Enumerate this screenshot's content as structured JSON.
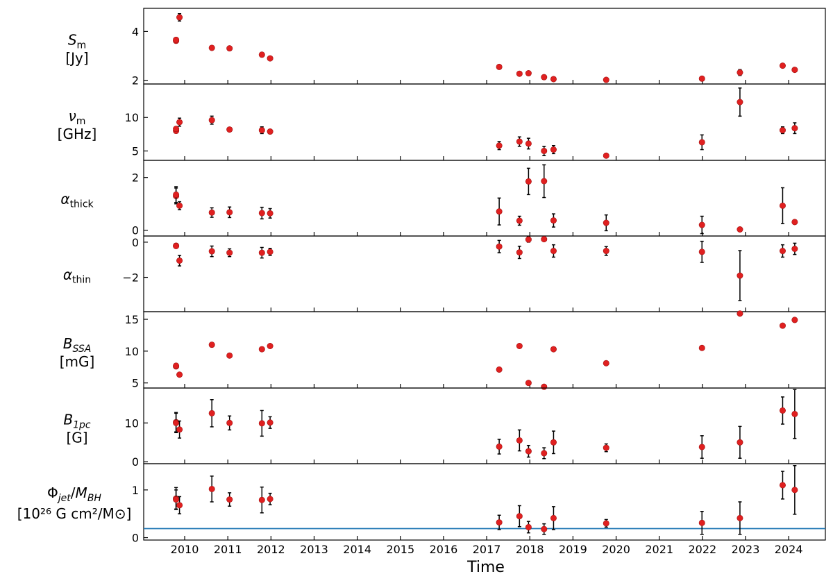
{
  "chart_data": {
    "type": "scatter",
    "xlabel": "Time",
    "x_range": [
      2009.05,
      2024.85
    ],
    "x_ticks": [
      2010,
      2011,
      2012,
      2013,
      2014,
      2015,
      2016,
      2017,
      2018,
      2019,
      2020,
      2021,
      2022,
      2023,
      2024
    ],
    "x_tick_labels": [
      "2010",
      "2011",
      "2012",
      "2013",
      "2014",
      "2015",
      "2016",
      "2017",
      "2018",
      "2019",
      "2020",
      "2021",
      "2022",
      "2023",
      "2024"
    ],
    "marker_color": "#e02020",
    "errorbar_color": "#000000",
    "panels": [
      {
        "ylabel_main": "S",
        "ylabel_sub": "m",
        "ylabel_unit": "[Jy]",
        "ylim": [
          1.85,
          4.95
        ],
        "yticks": [
          2,
          4
        ],
        "ytick_labels": [
          "2",
          "4"
        ],
        "points": [
          {
            "x": 2009.8,
            "y": 3.62,
            "err": 0.05
          },
          {
            "x": 2009.8,
            "y": 3.66,
            "err": 0.05
          },
          {
            "x": 2009.88,
            "y": 4.58,
            "err": 0.15
          },
          {
            "x": 2010.63,
            "y": 3.33,
            "err": 0.05
          },
          {
            "x": 2011.04,
            "y": 3.31,
            "err": 0.05
          },
          {
            "x": 2011.79,
            "y": 3.05,
            "err": 0.07
          },
          {
            "x": 2011.98,
            "y": 2.9,
            "err": 0.05
          },
          {
            "x": 2017.29,
            "y": 2.55,
            "err": 0.08
          },
          {
            "x": 2017.76,
            "y": 2.27,
            "err": 0.06
          },
          {
            "x": 2017.97,
            "y": 2.29,
            "err": 0.06
          },
          {
            "x": 2018.33,
            "y": 2.13,
            "err": 0.06
          },
          {
            "x": 2018.55,
            "y": 2.05,
            "err": 0.05
          },
          {
            "x": 2019.77,
            "y": 2.02,
            "err": 0.06
          },
          {
            "x": 2021.99,
            "y": 2.07,
            "err": 0.08
          },
          {
            "x": 2022.87,
            "y": 2.32,
            "err": 0.12
          },
          {
            "x": 2023.86,
            "y": 2.6,
            "err": 0.08
          },
          {
            "x": 2024.14,
            "y": 2.43,
            "err": 0.06
          }
        ]
      },
      {
        "ylabel_main": "ν",
        "ylabel_sub": "m",
        "ylabel_unit": "[GHz]",
        "ylim": [
          3.6,
          15.0
        ],
        "yticks": [
          5,
          10
        ],
        "ytick_labels": [
          "5",
          "10"
        ],
        "points": [
          {
            "x": 2009.8,
            "y": 8.0,
            "err": 0.3
          },
          {
            "x": 2009.8,
            "y": 8.3,
            "err": 0.3
          },
          {
            "x": 2009.88,
            "y": 9.3,
            "err": 0.6
          },
          {
            "x": 2010.63,
            "y": 9.6,
            "err": 0.6
          },
          {
            "x": 2011.04,
            "y": 8.2,
            "err": 0.3
          },
          {
            "x": 2011.79,
            "y": 8.1,
            "err": 0.5
          },
          {
            "x": 2011.98,
            "y": 7.9,
            "err": 0.3
          },
          {
            "x": 2017.29,
            "y": 5.8,
            "err": 0.6
          },
          {
            "x": 2017.76,
            "y": 6.4,
            "err": 0.7
          },
          {
            "x": 2017.97,
            "y": 6.1,
            "err": 0.8
          },
          {
            "x": 2018.33,
            "y": 5.0,
            "err": 0.7
          },
          {
            "x": 2018.55,
            "y": 5.2,
            "err": 0.6
          },
          {
            "x": 2019.77,
            "y": 4.3,
            "err": 0.3
          },
          {
            "x": 2021.99,
            "y": 6.3,
            "err": 1.1
          },
          {
            "x": 2022.87,
            "y": 12.3,
            "err": 2.1
          },
          {
            "x": 2023.86,
            "y": 8.1,
            "err": 0.5
          },
          {
            "x": 2024.14,
            "y": 8.4,
            "err": 0.8
          }
        ]
      },
      {
        "ylabel_main": "α",
        "ylabel_sub": "thick",
        "ylabel_unit": "",
        "ylim": [
          -0.22,
          2.65
        ],
        "yticks": [
          0,
          2
        ],
        "ytick_labels": [
          "0",
          "2"
        ],
        "points": [
          {
            "x": 2009.8,
            "y": 1.3,
            "err": 0.3
          },
          {
            "x": 2009.8,
            "y": 1.35,
            "err": 0.3
          },
          {
            "x": 2009.88,
            "y": 0.93,
            "err": 0.15
          },
          {
            "x": 2010.63,
            "y": 0.67,
            "err": 0.18
          },
          {
            "x": 2011.04,
            "y": 0.68,
            "err": 0.2
          },
          {
            "x": 2011.79,
            "y": 0.65,
            "err": 0.22
          },
          {
            "x": 2011.98,
            "y": 0.64,
            "err": 0.18
          },
          {
            "x": 2017.29,
            "y": 0.71,
            "err": 0.51
          },
          {
            "x": 2017.76,
            "y": 0.36,
            "err": 0.17
          },
          {
            "x": 2017.97,
            "y": 1.85,
            "err": 0.5
          },
          {
            "x": 2018.33,
            "y": 1.86,
            "err": 0.62
          },
          {
            "x": 2018.55,
            "y": 0.37,
            "err": 0.25
          },
          {
            "x": 2019.77,
            "y": 0.28,
            "err": 0.3
          },
          {
            "x": 2021.99,
            "y": 0.2,
            "err": 0.33
          },
          {
            "x": 2022.87,
            "y": 0.03,
            "err": 0.06
          },
          {
            "x": 2023.86,
            "y": 0.93,
            "err": 0.68
          },
          {
            "x": 2024.14,
            "y": 0.31,
            "err": 0.08
          }
        ]
      },
      {
        "ylabel_main": "α",
        "ylabel_sub": "thin",
        "ylabel_unit": "",
        "ylim": [
          -3.95,
          0.35
        ],
        "yticks": [
          -2,
          0
        ],
        "ytick_labels": [
          "−2",
          "0"
        ],
        "points": [
          {
            "x": 2009.8,
            "y": -0.2,
            "err": 0.08
          },
          {
            "x": 2009.8,
            "y": -0.22,
            "err": 0.08
          },
          {
            "x": 2009.88,
            "y": -1.05,
            "err": 0.3
          },
          {
            "x": 2010.63,
            "y": -0.52,
            "err": 0.3
          },
          {
            "x": 2011.04,
            "y": -0.6,
            "err": 0.22
          },
          {
            "x": 2011.79,
            "y": -0.6,
            "err": 0.3
          },
          {
            "x": 2011.98,
            "y": -0.55,
            "err": 0.2
          },
          {
            "x": 2017.29,
            "y": -0.25,
            "err": 0.35
          },
          {
            "x": 2017.76,
            "y": -0.58,
            "err": 0.35
          },
          {
            "x": 2017.97,
            "y": 0.15,
            "err": 0.15
          },
          {
            "x": 2018.33,
            "y": 0.17,
            "err": 0.1
          },
          {
            "x": 2018.55,
            "y": -0.5,
            "err": 0.35
          },
          {
            "x": 2019.77,
            "y": -0.5,
            "err": 0.25
          },
          {
            "x": 2021.99,
            "y": -0.55,
            "err": 0.6
          },
          {
            "x": 2022.87,
            "y": -1.9,
            "err": 1.42
          },
          {
            "x": 2023.86,
            "y": -0.5,
            "err": 0.35
          },
          {
            "x": 2024.14,
            "y": -0.38,
            "err": 0.32
          }
        ]
      },
      {
        "ylabel_main": "B",
        "ylabel_sub": "SSA",
        "ylabel_unit": "[mG]",
        "ylim": [
          4.2,
          16.2
        ],
        "yticks": [
          5,
          10,
          15
        ],
        "ytick_labels": [
          "5",
          "10",
          "15"
        ],
        "points": [
          {
            "x": 2009.8,
            "y": 7.6,
            "err": 0.15
          },
          {
            "x": 2009.8,
            "y": 7.7,
            "err": 0.15
          },
          {
            "x": 2009.88,
            "y": 6.3,
            "err": 0.15
          },
          {
            "x": 2010.63,
            "y": 11.0,
            "err": 0.15
          },
          {
            "x": 2011.04,
            "y": 9.3,
            "err": 0.15
          },
          {
            "x": 2011.79,
            "y": 10.3,
            "err": 0.15
          },
          {
            "x": 2011.98,
            "y": 10.8,
            "err": 0.15
          },
          {
            "x": 2017.29,
            "y": 7.1,
            "err": 0.15
          },
          {
            "x": 2017.76,
            "y": 10.8,
            "err": 0.15
          },
          {
            "x": 2017.97,
            "y": 5.0,
            "err": 0.15
          },
          {
            "x": 2018.33,
            "y": 4.4,
            "err": 0.15
          },
          {
            "x": 2018.55,
            "y": 10.3,
            "err": 0.15
          },
          {
            "x": 2019.77,
            "y": 8.1,
            "err": 0.15
          },
          {
            "x": 2021.99,
            "y": 10.5,
            "err": 0.15
          },
          {
            "x": 2022.87,
            "y": 15.9,
            "err": 0.15
          },
          {
            "x": 2023.86,
            "y": 14.0,
            "err": 0.15
          },
          {
            "x": 2024.14,
            "y": 14.9,
            "err": 0.15
          }
        ]
      },
      {
        "ylabel_main": "B",
        "ylabel_sub": "1pc",
        "ylabel_unit": "[G]",
        "ylim": [
          -0.5,
          19.0
        ],
        "yticks": [
          0,
          10
        ],
        "ytick_labels": [
          "0",
          "10"
        ],
        "points": [
          {
            "x": 2009.8,
            "y": 10.2,
            "err": 2.5
          },
          {
            "x": 2009.8,
            "y": 10.0,
            "err": 2.5
          },
          {
            "x": 2009.88,
            "y": 8.3,
            "err": 2.2
          },
          {
            "x": 2010.63,
            "y": 12.5,
            "err": 3.5
          },
          {
            "x": 2011.04,
            "y": 10.0,
            "err": 1.8
          },
          {
            "x": 2011.79,
            "y": 9.9,
            "err": 3.3
          },
          {
            "x": 2011.98,
            "y": 10.1,
            "err": 1.5
          },
          {
            "x": 2017.29,
            "y": 3.9,
            "err": 1.9
          },
          {
            "x": 2017.76,
            "y": 5.5,
            "err": 2.7
          },
          {
            "x": 2017.97,
            "y": 2.7,
            "err": 1.5
          },
          {
            "x": 2018.33,
            "y": 2.2,
            "err": 1.4
          },
          {
            "x": 2018.55,
            "y": 5.0,
            "err": 2.9
          },
          {
            "x": 2019.77,
            "y": 3.6,
            "err": 1.0
          },
          {
            "x": 2021.99,
            "y": 3.8,
            "err": 2.9
          },
          {
            "x": 2022.87,
            "y": 5.0,
            "err": 4.1
          },
          {
            "x": 2023.86,
            "y": 13.2,
            "err": 3.5
          },
          {
            "x": 2024.14,
            "y": 12.3,
            "err": 6.3
          }
        ]
      },
      {
        "ylabel_main": "Φ",
        "ylabel_line1_html": "Φ<tspan font-size='14' dy='5' font-style='italic'>jet</tspan><tspan dy='-5'>/</tspan><tspan font-style='italic'>M</tspan><tspan font-size='14' dy='5' font-style='italic'>BH</tspan>",
        "ylabel_unit": "[10²⁶ G cm²/M⊙]",
        "ylim": [
          -0.05,
          1.55
        ],
        "yticks": [
          0,
          1
        ],
        "ytick_labels": [
          "0",
          "1"
        ],
        "hline": {
          "y": 0.19,
          "color": "#1f77b4"
        },
        "points": [
          {
            "x": 2009.8,
            "y": 0.82,
            "err": 0.23
          },
          {
            "x": 2009.8,
            "y": 0.8,
            "err": 0.2
          },
          {
            "x": 2009.88,
            "y": 0.68,
            "err": 0.18
          },
          {
            "x": 2010.63,
            "y": 1.02,
            "err": 0.27
          },
          {
            "x": 2011.04,
            "y": 0.8,
            "err": 0.14
          },
          {
            "x": 2011.79,
            "y": 0.79,
            "err": 0.27
          },
          {
            "x": 2011.98,
            "y": 0.81,
            "err": 0.12
          },
          {
            "x": 2017.29,
            "y": 0.32,
            "err": 0.15
          },
          {
            "x": 2017.76,
            "y": 0.45,
            "err": 0.22
          },
          {
            "x": 2017.97,
            "y": 0.22,
            "err": 0.12
          },
          {
            "x": 2018.33,
            "y": 0.18,
            "err": 0.11
          },
          {
            "x": 2018.55,
            "y": 0.41,
            "err": 0.24
          },
          {
            "x": 2019.77,
            "y": 0.3,
            "err": 0.08
          },
          {
            "x": 2021.99,
            "y": 0.31,
            "err": 0.24
          },
          {
            "x": 2022.87,
            "y": 0.41,
            "err": 0.34
          },
          {
            "x": 2023.86,
            "y": 1.1,
            "err": 0.29
          },
          {
            "x": 2024.14,
            "y": 1.0,
            "err": 0.51
          }
        ]
      }
    ]
  }
}
